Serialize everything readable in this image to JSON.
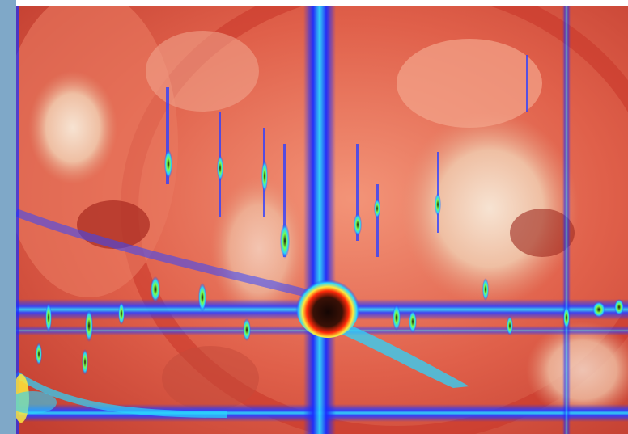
{
  "image": {
    "subject": "tomato-slice-with-chromatogram-overlay",
    "colors": {
      "left_band": "#7fa8c8",
      "tomato_red": "#d9473a",
      "tomato_flesh": "#f07a5e",
      "seed_gel": "#f4d2b8",
      "overlay_blue": "#1a2cff",
      "overlay_cyan": "#29d6ff",
      "overlay_green": "#7cff4a",
      "overlay_yellow": "#ffe93a",
      "peak_core": "#1a0a06"
    }
  }
}
